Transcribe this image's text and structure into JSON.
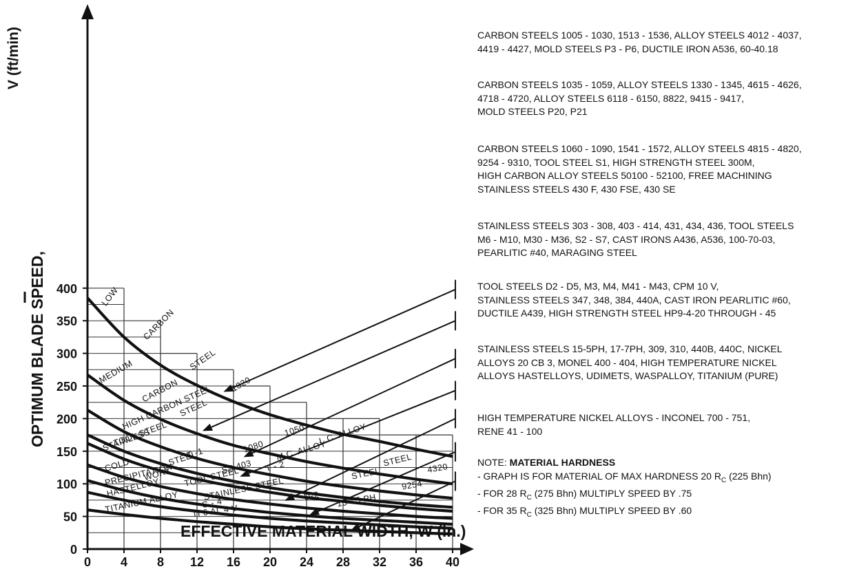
{
  "chart_data": {
    "type": "line",
    "y_label_line1": "OPTIMUM BLADE SPEED,",
    "y_label_line2": "V (ft/min)",
    "x_label": "EFFECTIVE MATERIAL WIDTH, W (in.)",
    "x_ticks": [
      "0",
      "4",
      "8",
      "12",
      "16",
      "20",
      "24",
      "28",
      "32",
      "36",
      "40"
    ],
    "y_ticks": [
      "0",
      "50",
      "100",
      "150",
      "200",
      "250",
      "300",
      "350",
      "400"
    ],
    "xlim": [
      0,
      40
    ],
    "ylim": [
      0,
      400
    ],
    "envelope": [
      {
        "x": [
          0,
          4
        ],
        "y": 400
      },
      {
        "x": [
          4,
          8
        ],
        "y": 350
      },
      {
        "x": [
          8,
          12
        ],
        "y": 300
      },
      {
        "x": [
          12,
          16
        ],
        "y": 275
      },
      {
        "x": [
          16,
          20
        ],
        "y": 250
      },
      {
        "x": [
          20,
          24
        ],
        "y": 225
      },
      {
        "x": [
          24,
          28
        ],
        "y": 200
      },
      {
        "x": [
          28,
          32
        ],
        "y": 200
      },
      {
        "x": [
          32,
          36
        ],
        "y": 175
      },
      {
        "x": [
          36,
          40
        ],
        "y": 175
      }
    ],
    "series": [
      {
        "name": "LOW CARBON STEEL 1020",
        "x": [
          0,
          4,
          8,
          12,
          16,
          20,
          24,
          28,
          32,
          36,
          40
        ],
        "y": [
          385,
          325,
          282,
          251,
          226,
          206,
          190,
          176,
          165,
          153,
          142
        ]
      },
      {
        "name": "MEDIUM CARBON STEEL 1050 / L.C. ALLOY STEEL 4320",
        "x": [
          0,
          4,
          8,
          12,
          16,
          20,
          24,
          28,
          32,
          36,
          40
        ],
        "y": [
          267,
          228,
          199,
          177,
          159,
          146,
          134,
          124,
          115,
          107,
          100
        ]
      },
      {
        "name": "HIGH CARBON STEEL 1080 / M.C. ALLOY STEEL 9254",
        "x": [
          0,
          4,
          8,
          12,
          16,
          20,
          24,
          28,
          32,
          36,
          40
        ],
        "y": [
          213,
          180,
          157,
          139,
          125,
          114,
          104,
          96,
          89,
          83,
          78
        ]
      },
      {
        "name": "TOOL STEEL T-1 / T-2",
        "x": [
          0,
          4,
          8,
          12,
          16,
          20,
          24,
          28,
          32,
          36,
          40
        ],
        "y": [
          175,
          150,
          131,
          116,
          104,
          94,
          86,
          79,
          73,
          68,
          64
        ]
      },
      {
        "name": "STAINLESS STEEL SS 403",
        "x": [
          0,
          4,
          8,
          12,
          16,
          20,
          24,
          28,
          32,
          36,
          40
        ],
        "y": [
          162,
          138,
          120,
          107,
          96,
          87,
          79,
          73,
          67,
          62,
          58
        ]
      },
      {
        "name": "COLD WORK TOOL STEEL D-2",
        "x": [
          0,
          4,
          8,
          12,
          16,
          20,
          24,
          28,
          32,
          36,
          40
        ],
        "y": [
          129,
          110,
          96,
          85,
          76,
          69,
          63,
          58,
          54,
          50,
          47
        ]
      },
      {
        "name": "PRECIPITATION STAINLESS STEEL 15-5 PH",
        "x": [
          0,
          4,
          8,
          12,
          16,
          20,
          24,
          28,
          32,
          36,
          40
        ],
        "y": [
          105,
          90,
          78,
          69,
          62,
          56,
          51,
          47,
          44,
          41,
          38
        ]
      },
      {
        "name": "HASTELLOY C-4",
        "x": [
          0,
          4,
          8,
          12,
          16,
          20,
          24,
          28,
          32,
          36,
          40
        ],
        "y": [
          87,
          75,
          65,
          58,
          52,
          47,
          43,
          40,
          37,
          34,
          32
        ]
      },
      {
        "name": "TITANIUM ALLOY TI 6 AL 4 V",
        "x": [
          0,
          4,
          8,
          12,
          16,
          20,
          24,
          28,
          32,
          36,
          40
        ],
        "y": [
          60,
          53,
          47,
          42,
          38,
          34,
          31,
          29,
          27,
          25,
          23
        ]
      }
    ],
    "curve_labels": [
      {
        "text": "LOW",
        "x": 2.0,
        "y": 372,
        "angle": -52
      },
      {
        "text": "CARBON",
        "x": 6.5,
        "y": 320,
        "angle": -45
      },
      {
        "text": "STEEL",
        "x": 11.5,
        "y": 274,
        "angle": -35
      },
      {
        "text": "1020",
        "x": 16.0,
        "y": 241,
        "angle": -30
      },
      {
        "text": "MEDIUM",
        "x": 1.5,
        "y": 254,
        "angle": -30
      },
      {
        "text": "CARBON",
        "x": 6.2,
        "y": 225,
        "angle": -28
      },
      {
        "text": "STEEL",
        "x": 10.3,
        "y": 203,
        "angle": -25
      },
      {
        "text": "1050",
        "x": 21.7,
        "y": 173,
        "angle": -18
      },
      {
        "text": "L.C. ALLOY",
        "x": 25.5,
        "y": 161,
        "angle": -18
      },
      {
        "text": "STEEL",
        "x": 32.5,
        "y": 127,
        "angle": -14
      },
      {
        "text": "4320",
        "x": 37.3,
        "y": 117,
        "angle": -10
      },
      {
        "text": "HIGH CARBON STEEL",
        "x": 4.0,
        "y": 183,
        "angle": -24
      },
      {
        "text": "1080",
        "x": 17.2,
        "y": 148,
        "angle": -18
      },
      {
        "text": "M.C. ALLOY",
        "x": 20.8,
        "y": 136,
        "angle": -16
      },
      {
        "text": "STEEL",
        "x": 29.0,
        "y": 107,
        "angle": -12
      },
      {
        "text": "9254",
        "x": 34.5,
        "y": 91,
        "angle": -10
      },
      {
        "text": "TOOL STEEL",
        "x": 3.0,
        "y": 158,
        "angle": -20
      },
      {
        "text": "T -1",
        "x": 11.0,
        "y": 139,
        "angle": -18
      },
      {
        "text": "T - 2",
        "x": 19.6,
        "y": 119,
        "angle": -15
      },
      {
        "text": "STAINLESS",
        "x": 1.8,
        "y": 150,
        "angle": -20
      },
      {
        "text": "STEEL",
        "x": 9.0,
        "y": 128,
        "angle": -18
      },
      {
        "text": "SS 403",
        "x": 14.8,
        "y": 116,
        "angle": -15
      },
      {
        "text": "COLD",
        "x": 2.0,
        "y": 119,
        "angle": -17
      },
      {
        "text": "WORK",
        "x": 6.3,
        "y": 105,
        "angle": -16
      },
      {
        "text": "TOOL STEEL",
        "x": 10.7,
        "y": 96,
        "angle": -14
      },
      {
        "text": "D-2",
        "x": 23.8,
        "y": 75,
        "angle": -12
      },
      {
        "text": "PRECIPITATION",
        "x": 2.0,
        "y": 97,
        "angle": -14
      },
      {
        "text": "STAINLESS STEEL",
        "x": 12.8,
        "y": 75,
        "angle": -12
      },
      {
        "text": "15 - 5 PH",
        "x": 27.4,
        "y": 65,
        "angle": -10
      },
      {
        "text": "HASTELLOY",
        "x": 2.2,
        "y": 80,
        "angle": -14
      },
      {
        "text": "C - 4",
        "x": 12.6,
        "y": 63,
        "angle": -12
      },
      {
        "text": "TITANIUM ALLOY",
        "x": 2.0,
        "y": 56,
        "angle": -12
      },
      {
        "text": "TI 6 AL 4 V",
        "x": 11.5,
        "y": 49,
        "angle": -8
      }
    ],
    "arrows": [
      {
        "from": [
          40.3,
          398
        ],
        "to": [
          14.9,
          241
        ]
      },
      {
        "from": [
          40.3,
          350
        ],
        "to": [
          12.6,
          181
        ]
      },
      {
        "from": [
          40.3,
          292
        ],
        "to": [
          17.1,
          141
        ]
      },
      {
        "from": [
          40.3,
          243
        ],
        "to": [
          16.7,
          111
        ]
      },
      {
        "from": [
          40.3,
          200
        ],
        "to": [
          21.6,
          74
        ]
      },
      {
        "from": [
          40.3,
          149
        ],
        "to": [
          24.3,
          52
        ]
      },
      {
        "from": [
          40.3,
          104
        ],
        "to": [
          28.8,
          28
        ]
      }
    ]
  },
  "notes": [
    {
      "lines": [
        "CARBON STEELS 1005 - 1030, 1513 - 1536, ALLOY STEELS 4012 - 4037,",
        "4419 - 4427, MOLD STEELS P3 - P6, DUCTILE IRON A536, 60-40.18"
      ]
    },
    {
      "lines": [
        "CARBON STEELS 1035 - 1059, ALLOY STEELS 1330 - 1345, 4615 - 4626,",
        "4718 - 4720, ALLOY STEELS 6118 - 6150, 8822, 9415 - 9417,",
        "MOLD STEELS P20, P21"
      ]
    },
    {
      "lines": [
        "CARBON STEELS 1060 - 1090, 1541 - 1572, ALLOY STEELS 4815 - 4820,",
        "9254 - 9310, TOOL STEEL S1, HIGH STRENGTH STEEL 300M,",
        "HIGH CARBON ALLOY STEELS 50100 - 52100, FREE MACHINING",
        "STAINLESS STEELS 430 F, 430 FSE, 430 SE"
      ]
    },
    {
      "lines": [
        "STAINLESS STEELS 303 - 308, 403 - 414, 431, 434, 436, TOOL STEELS",
        "M6 - M10, M30 - M36, S2 - S7, CAST IRONS A436, A536, 100-70-03,",
        "PEARLITIC #40, MARAGING STEEL"
      ]
    },
    {
      "lines": [
        "TOOL STEELS D2 - D5, M3, M4, M41 - M43, CPM 10 V,",
        "STAINLESS STEELS 347, 348, 384, 440A, CAST IRON PEARLITIC #60,",
        "DUCTILE A439, HIGH STRENGTH STEEL HP9-4-20 THROUGH - 45"
      ]
    },
    {
      "lines": [
        "STAINLESS STEELS 15-5PH, 17-7PH, 309, 310, 440B, 440C, NICKEL",
        "ALLOYS 20 CB 3, MONEL 400 - 404, HIGH TEMPERATURE NICKEL",
        "ALLOYS HASTELLOYS, UDIMETS, WASPALLOY, TITANIUM (PURE)"
      ]
    },
    {
      "lines": [
        "HIGH TEMPERATURE NICKEL ALLOYS - INCONEL 700 - 751,",
        "RENE 41 - 100"
      ]
    }
  ],
  "hardness": {
    "prefix": "NOTE: ",
    "title": "MATERIAL HARDNESS",
    "line1_a": "- GRAPH IS FOR MATERIAL OF MAX HARDNESS 20 R",
    "line1_sub": "C",
    "line1_b": " (225 Bhn)",
    "line2_a": "- FOR 28 R",
    "line2_sub": "C",
    "line2_b": " (275 Bhn) MULTIPLY SPEED BY .75",
    "line3_a": "- FOR 35 R",
    "line3_sub": "C",
    "line3_b": " (325 Bhn) MULTIPLY SPEED BY .60"
  }
}
